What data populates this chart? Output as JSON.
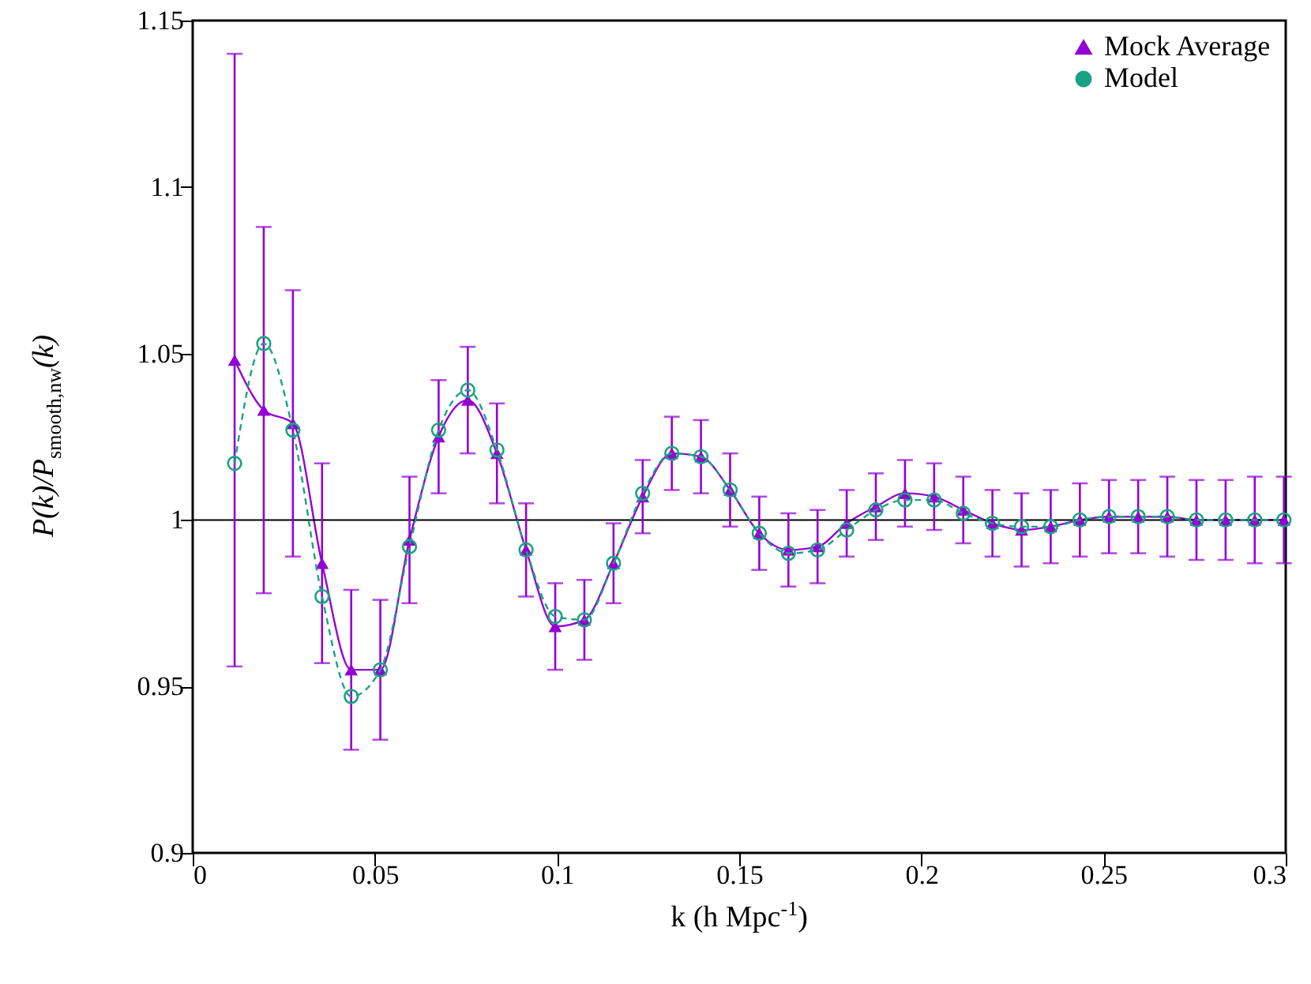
{
  "chart_data": {
    "type": "line",
    "xlabel": "k (h Mpc$^{-1}$)",
    "ylabel": "P(k)/P$_{smooth,nw}$(k)",
    "x": [
      0.0115,
      0.0195,
      0.0275,
      0.0355,
      0.0435,
      0.0515,
      0.0595,
      0.0675,
      0.0755,
      0.0835,
      0.0915,
      0.0995,
      0.1075,
      0.1155,
      0.1235,
      0.1315,
      0.1395,
      0.1475,
      0.1555,
      0.1635,
      0.1715,
      0.1795,
      0.1875,
      0.1955,
      0.2035,
      0.2115,
      0.2195,
      0.2275,
      0.2355,
      0.2435,
      0.2515,
      0.2595,
      0.2675,
      0.2755,
      0.2835,
      0.2915,
      0.2995
    ],
    "series": [
      {
        "name": "Mock Average",
        "color": "#9400d3",
        "marker": "triangle",
        "line_style": "solid",
        "values": [
          1.048,
          1.033,
          1.029,
          0.987,
          0.955,
          0.955,
          0.994,
          1.025,
          1.036,
          1.02,
          0.991,
          0.968,
          0.97,
          0.987,
          1.007,
          1.02,
          1.019,
          1.009,
          0.996,
          0.991,
          0.992,
          0.999,
          1.004,
          1.008,
          1.007,
          1.003,
          0.999,
          0.997,
          0.998,
          1.0,
          1.001,
          1.001,
          1.001,
          1.0,
          1.0,
          1.0,
          1.0
        ],
        "errors": [
          0.092,
          0.055,
          0.04,
          0.03,
          0.024,
          0.021,
          0.019,
          0.017,
          0.016,
          0.015,
          0.014,
          0.013,
          0.012,
          0.012,
          0.011,
          0.011,
          0.011,
          0.011,
          0.011,
          0.011,
          0.011,
          0.01,
          0.01,
          0.01,
          0.01,
          0.01,
          0.01,
          0.011,
          0.011,
          0.011,
          0.011,
          0.011,
          0.012,
          0.012,
          0.012,
          0.013,
          0.013
        ]
      },
      {
        "name": "Model",
        "color": "#1aa383",
        "marker": "circle",
        "line_style": "dashed",
        "values": [
          1.017,
          1.053,
          1.027,
          0.977,
          0.947,
          0.955,
          0.992,
          1.027,
          1.039,
          1.021,
          0.991,
          0.971,
          0.97,
          0.987,
          1.008,
          1.02,
          1.019,
          1.009,
          0.996,
          0.99,
          0.991,
          0.997,
          1.003,
          1.006,
          1.006,
          1.002,
          0.999,
          0.998,
          0.998,
          1.0,
          1.001,
          1.001,
          1.001,
          1.0,
          1.0,
          1.0,
          1.0
        ]
      }
    ],
    "xlim": [
      0,
      0.3
    ],
    "xticks": [
      0,
      0.05,
      0.1,
      0.15,
      0.2,
      0.25,
      0.3
    ],
    "ylim": [
      0.9,
      1.15
    ],
    "yticks": [
      0.9,
      0.95,
      1,
      1.05,
      1.1,
      1.15
    ],
    "ref_lines": [
      {
        "axis": "y",
        "value": 1,
        "color": "#000000",
        "line_style": "solid"
      }
    ],
    "grid": false,
    "legend": "top right"
  }
}
